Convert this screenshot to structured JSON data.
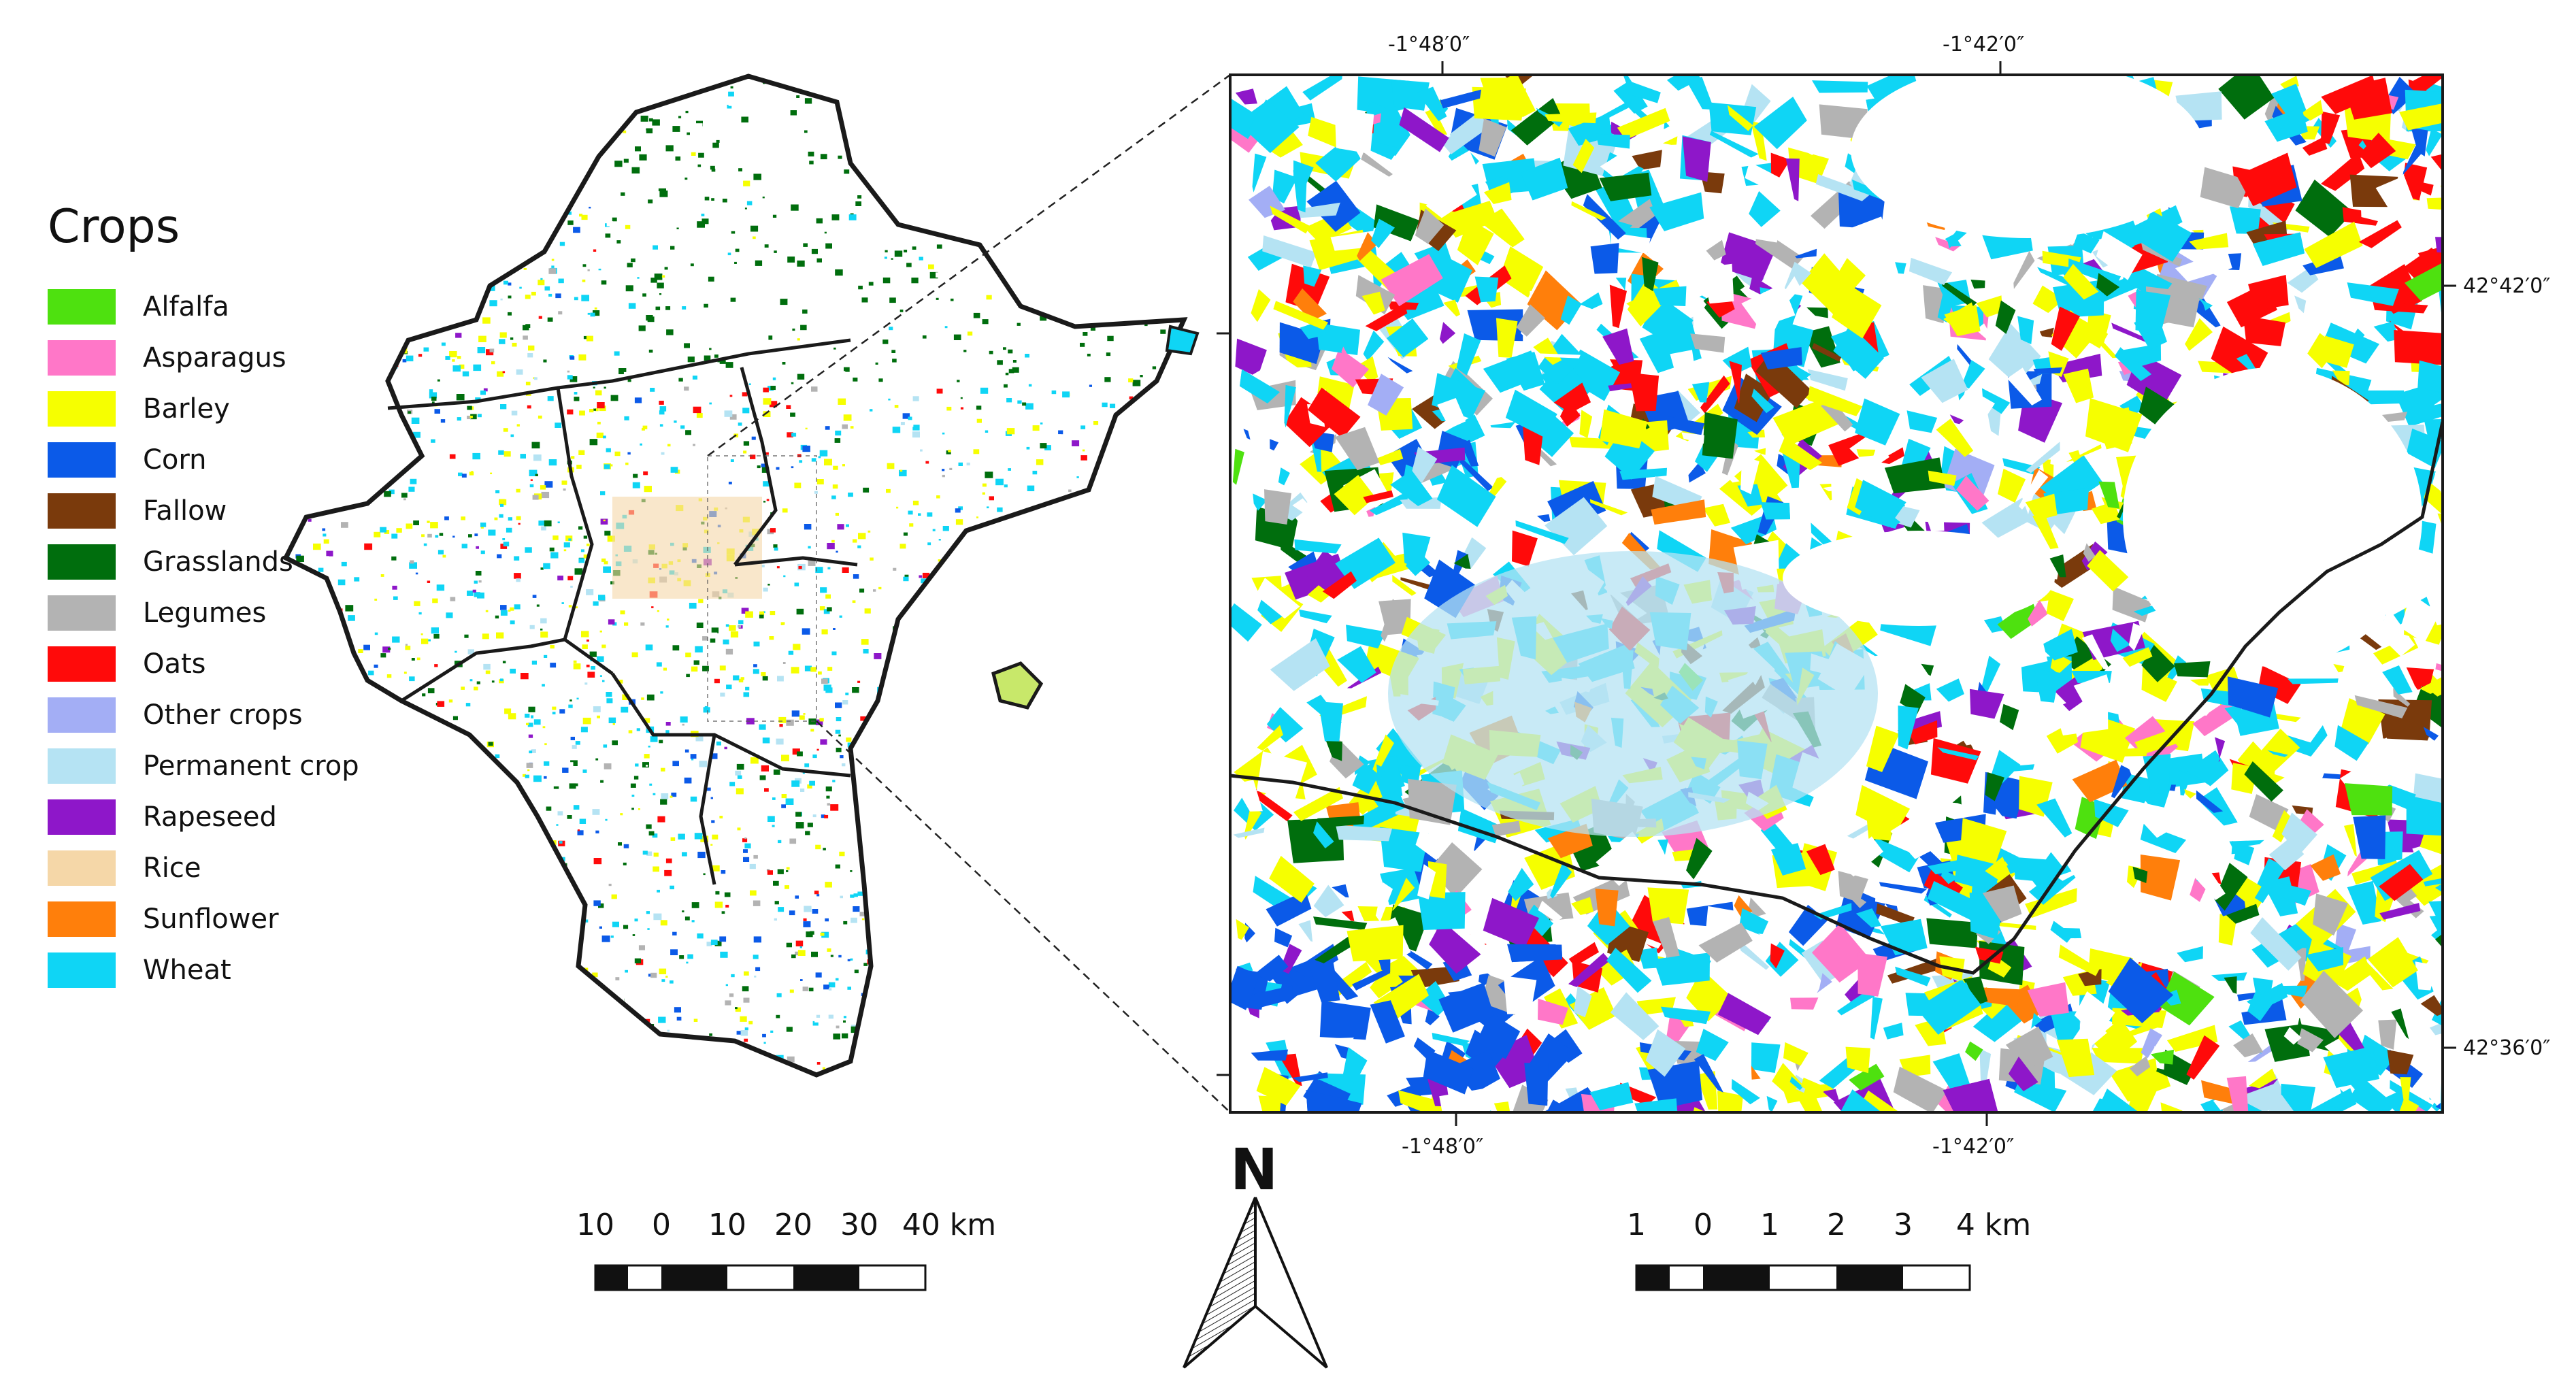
{
  "legend": {
    "title": "Crops",
    "items": [
      {
        "label": "Alfalfa",
        "color": "#4ee10f"
      },
      {
        "label": "Asparagus",
        "color": "#ff77c8"
      },
      {
        "label": "Barley",
        "color": "#f6ff00"
      },
      {
        "label": "Corn",
        "color": "#0b5ae8"
      },
      {
        "label": "Fallow",
        "color": "#7a3a0c"
      },
      {
        "label": "Grasslands",
        "color": "#006e0d"
      },
      {
        "label": "Legumes",
        "color": "#b3b3b3"
      },
      {
        "label": "Oats",
        "color": "#ff0a0a"
      },
      {
        "label": "Other crops",
        "color": "#a3aef5"
      },
      {
        "label": "Permanent crop",
        "color": "#b5e3f3"
      },
      {
        "label": "Rapeseed",
        "color": "#8e17c9"
      },
      {
        "label": "Rice",
        "color": "#f5d7a8"
      },
      {
        "label": "Sunflower",
        "color": "#ff7f0b"
      },
      {
        "label": "Wheat",
        "color": "#0fd5f5"
      }
    ]
  },
  "detail_map": {
    "lon_labels_top": [
      "-1°48′0″",
      "-1°42′0″"
    ],
    "lon_labels_bottom": [
      "-1°48′0″",
      "-1°42′0″"
    ],
    "lat_labels_right": [
      "42°42′0″",
      "42°36′0″"
    ]
  },
  "scale_left": {
    "labels": [
      "10",
      "0",
      "10",
      "20",
      "30",
      "40 km"
    ]
  },
  "scale_right": {
    "labels": [
      "1",
      "0",
      "1",
      "2",
      "3",
      "4 km"
    ]
  },
  "north_arrow": {
    "letter": "N"
  }
}
